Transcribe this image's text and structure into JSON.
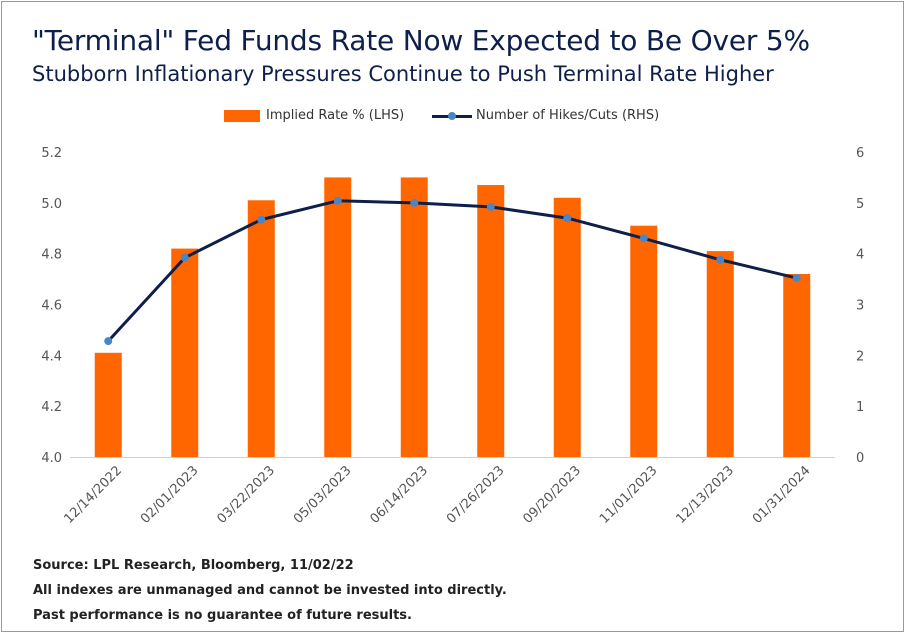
{
  "title": "\"Terminal\" Fed Funds Rate Now Expected to Be Over 5%",
  "subtitle": "Stubborn Inflationary Pressures Continue to Push Terminal Rate Higher",
  "colors": {
    "bar": "#ff6600",
    "line": "#0e1f4a",
    "marker": "#4a86c5",
    "axis_text": "#555555"
  },
  "chart_data": {
    "type": "bar",
    "categories": [
      "12/14/2022",
      "02/01/2023",
      "03/22/2023",
      "05/03/2023",
      "06/14/2023",
      "07/26/2023",
      "09/20/2023",
      "11/01/2023",
      "12/13/2023",
      "01/31/2024"
    ],
    "series": [
      {
        "name": "Implied Rate % (LHS)",
        "type": "bar",
        "axis": "left",
        "values": [
          4.41,
          4.82,
          5.01,
          5.1,
          5.1,
          5.07,
          5.02,
          4.91,
          4.81,
          4.72
        ]
      },
      {
        "name": "Number of Hikes/Cuts (RHS)",
        "type": "line",
        "axis": "right",
        "values": [
          2.28,
          3.92,
          4.67,
          5.04,
          5.0,
          4.92,
          4.7,
          4.3,
          3.88,
          3.52
        ]
      }
    ],
    "ylim_left": [
      4.0,
      5.2
    ],
    "yticks_left": [
      "4.0",
      "4.2",
      "4.4",
      "4.6",
      "4.8",
      "5.0",
      "5.2"
    ],
    "ylim_right": [
      0,
      6
    ],
    "yticks_right": [
      "0",
      "1",
      "2",
      "3",
      "4",
      "5",
      "6"
    ],
    "legend": "top-center",
    "grid": false
  },
  "footer": {
    "source": "Source: LPL Research, Bloomberg, 11/02/22",
    "disclaimer1": "All indexes are unmanaged and cannot be invested into directly.",
    "disclaimer2": "Past performance is no guarantee of future results."
  }
}
